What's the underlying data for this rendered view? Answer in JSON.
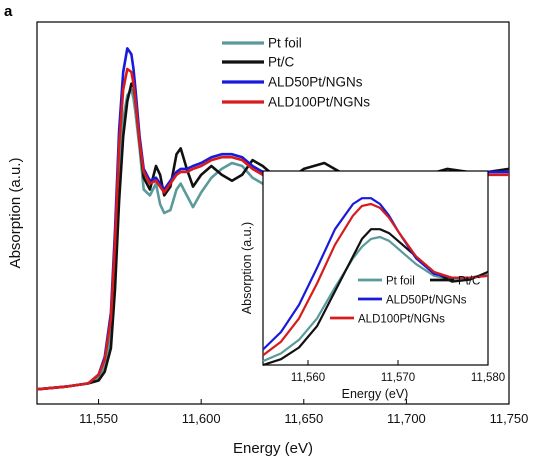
{
  "panel_label": "a",
  "chart_data": [
    {
      "id": "main",
      "type": "line",
      "title": "",
      "xlabel": "Energy (eV)",
      "ylabel": "Absorption (a.u.)",
      "xlim": [
        11520,
        11750
      ],
      "ylim": [
        -0.05,
        1.25
      ],
      "xticks": [
        11550,
        11600,
        11650,
        11700,
        11750
      ],
      "xtick_labels": [
        "11,550",
        "11,600",
        "11,650",
        "11,700",
        "11,750"
      ],
      "grid": false,
      "legend_position": "top-center",
      "series": [
        {
          "name": "Pt foil",
          "color": "#5a9a9a",
          "x": [
            11520,
            11535,
            11545,
            11550,
            11553,
            11556,
            11558,
            11560,
            11562,
            11564,
            11566,
            11567,
            11568,
            11570,
            11572,
            11575,
            11578,
            11580,
            11582,
            11585,
            11588,
            11590,
            11593,
            11596,
            11600,
            11605,
            11610,
            11615,
            11620,
            11625,
            11630,
            11640,
            11650,
            11660,
            11670,
            11680,
            11690,
            11700,
            11710,
            11720,
            11730,
            11740,
            11750
          ],
          "y": [
            0.0,
            0.01,
            0.02,
            0.04,
            0.08,
            0.18,
            0.4,
            0.72,
            0.92,
            1.0,
            1.02,
            0.99,
            0.94,
            0.82,
            0.68,
            0.66,
            0.7,
            0.63,
            0.6,
            0.61,
            0.68,
            0.7,
            0.66,
            0.62,
            0.67,
            0.72,
            0.75,
            0.77,
            0.76,
            0.72,
            0.7,
            0.71,
            0.73,
            0.73,
            0.74,
            0.74,
            0.73,
            0.73,
            0.74,
            0.74,
            0.74,
            0.74,
            0.75
          ]
        },
        {
          "name": "Pt/C",
          "color": "#111111",
          "x": [
            11520,
            11535,
            11545,
            11550,
            11553,
            11556,
            11558,
            11560,
            11562,
            11564,
            11566,
            11567,
            11568,
            11570,
            11572,
            11575,
            11578,
            11580,
            11582,
            11585,
            11588,
            11590,
            11593,
            11596,
            11600,
            11605,
            11610,
            11615,
            11620,
            11625,
            11630,
            11640,
            11650,
            11660,
            11670,
            11680,
            11690,
            11700,
            11710,
            11720,
            11730,
            11740,
            11750
          ],
          "y": [
            0.0,
            0.01,
            0.02,
            0.03,
            0.06,
            0.14,
            0.34,
            0.64,
            0.86,
            0.98,
            1.04,
            1.03,
            0.98,
            0.84,
            0.72,
            0.68,
            0.76,
            0.73,
            0.66,
            0.69,
            0.8,
            0.82,
            0.75,
            0.69,
            0.73,
            0.76,
            0.73,
            0.71,
            0.73,
            0.78,
            0.76,
            0.7,
            0.75,
            0.77,
            0.73,
            0.71,
            0.74,
            0.72,
            0.73,
            0.75,
            0.74,
            0.74,
            0.75
          ]
        },
        {
          "name": "ALD50Pt/NGNs",
          "color": "#1a1adc",
          "x": [
            11520,
            11535,
            11545,
            11550,
            11553,
            11556,
            11558,
            11560,
            11562,
            11564,
            11566,
            11567,
            11568,
            11570,
            11572,
            11575,
            11578,
            11580,
            11582,
            11585,
            11588,
            11590,
            11593,
            11596,
            11600,
            11605,
            11610,
            11615,
            11620,
            11625,
            11630,
            11640,
            11650,
            11660,
            11670,
            11680,
            11690,
            11700,
            11710,
            11720,
            11730,
            11740,
            11750
          ],
          "y": [
            0.0,
            0.01,
            0.02,
            0.05,
            0.11,
            0.26,
            0.54,
            0.88,
            1.08,
            1.16,
            1.14,
            1.09,
            1.02,
            0.86,
            0.75,
            0.71,
            0.72,
            0.7,
            0.68,
            0.71,
            0.74,
            0.75,
            0.75,
            0.76,
            0.77,
            0.79,
            0.8,
            0.8,
            0.79,
            0.76,
            0.74,
            0.73,
            0.74,
            0.74,
            0.74,
            0.74,
            0.74,
            0.74,
            0.74,
            0.74,
            0.74,
            0.74,
            0.74
          ]
        },
        {
          "name": "ALD100Pt/NGNs",
          "color": "#d81b1b",
          "x": [
            11520,
            11535,
            11545,
            11550,
            11553,
            11556,
            11558,
            11560,
            11562,
            11564,
            11566,
            11567,
            11568,
            11570,
            11572,
            11575,
            11578,
            11580,
            11582,
            11585,
            11588,
            11590,
            11593,
            11596,
            11600,
            11605,
            11610,
            11615,
            11620,
            11625,
            11630,
            11640,
            11650,
            11660,
            11670,
            11680,
            11690,
            11700,
            11710,
            11720,
            11730,
            11740,
            11750
          ],
          "y": [
            0.0,
            0.01,
            0.02,
            0.05,
            0.1,
            0.24,
            0.5,
            0.83,
            1.02,
            1.09,
            1.08,
            1.04,
            0.98,
            0.84,
            0.74,
            0.7,
            0.71,
            0.69,
            0.67,
            0.7,
            0.73,
            0.74,
            0.74,
            0.75,
            0.76,
            0.78,
            0.79,
            0.79,
            0.78,
            0.75,
            0.73,
            0.72,
            0.73,
            0.73,
            0.73,
            0.73,
            0.73,
            0.73,
            0.73,
            0.73,
            0.73,
            0.73,
            0.73
          ]
        }
      ]
    },
    {
      "id": "inset",
      "type": "line",
      "title": "",
      "xlabel": "Energy (eV)",
      "ylabel": "Absorption (a.u.)",
      "xlim": [
        11555,
        11580
      ],
      "ylim": [
        0.0,
        1.0
      ],
      "xticks": [
        11560,
        11570,
        11580
      ],
      "xtick_labels": [
        "11,560",
        "11,570",
        "11,580"
      ],
      "grid": false,
      "legend_position": "bottom-center",
      "series": [
        {
          "name": "Pt foil",
          "color": "#5a9a9a",
          "x": [
            11555,
            11557,
            11559,
            11561,
            11563,
            11565,
            11566,
            11567,
            11568,
            11569,
            11570,
            11572,
            11574,
            11576,
            11578,
            11580
          ],
          "y": [
            0.02,
            0.06,
            0.13,
            0.24,
            0.4,
            0.55,
            0.61,
            0.65,
            0.66,
            0.64,
            0.6,
            0.52,
            0.46,
            0.44,
            0.45,
            0.47
          ]
        },
        {
          "name": "Pt/C",
          "color": "#111111",
          "x": [
            11555,
            11557,
            11559,
            11561,
            11563,
            11565,
            11566,
            11567,
            11568,
            11569,
            11570,
            11572,
            11574,
            11576,
            11578,
            11580
          ],
          "y": [
            0.0,
            0.03,
            0.09,
            0.2,
            0.38,
            0.56,
            0.65,
            0.7,
            0.7,
            0.68,
            0.64,
            0.56,
            0.48,
            0.43,
            0.44,
            0.48
          ]
        },
        {
          "name": "ALD50Pt/NGNs",
          "color": "#1a1adc",
          "x": [
            11555,
            11557,
            11559,
            11561,
            11563,
            11565,
            11566,
            11567,
            11568,
            11569,
            11570,
            11572,
            11574,
            11576,
            11578,
            11580
          ],
          "y": [
            0.08,
            0.17,
            0.31,
            0.5,
            0.7,
            0.83,
            0.86,
            0.86,
            0.83,
            0.77,
            0.69,
            0.55,
            0.47,
            0.45,
            0.45,
            0.46
          ]
        },
        {
          "name": "ALD100Pt/NGNs",
          "color": "#d81b1b",
          "x": [
            11555,
            11557,
            11559,
            11561,
            11563,
            11565,
            11566,
            11567,
            11568,
            11569,
            11570,
            11572,
            11574,
            11576,
            11578,
            11580
          ],
          "y": [
            0.05,
            0.12,
            0.24,
            0.42,
            0.62,
            0.77,
            0.82,
            0.83,
            0.81,
            0.76,
            0.69,
            0.56,
            0.48,
            0.45,
            0.45,
            0.46
          ]
        }
      ]
    }
  ]
}
